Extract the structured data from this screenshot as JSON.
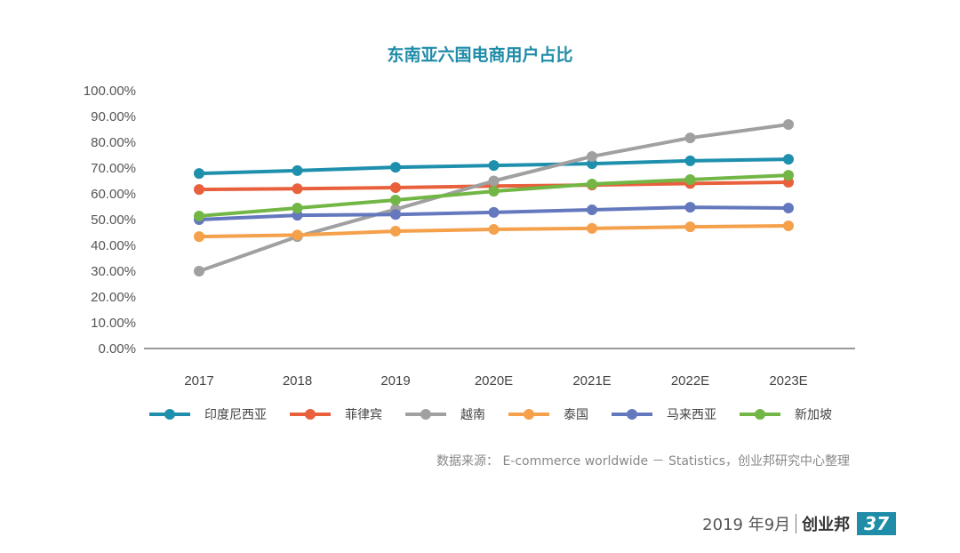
{
  "chart_data": {
    "type": "line",
    "title": "东南亚六国电商用户占比",
    "xlabel": "",
    "ylabel": "",
    "categories": [
      "2017",
      "2018",
      "2019",
      "2020E",
      "2021E",
      "2022E",
      "2023E"
    ],
    "ylim": [
      0,
      100
    ],
    "yticks": [
      "0.00%",
      "10.00%",
      "20.00%",
      "30.00%",
      "40.00%",
      "50.00%",
      "60.00%",
      "70.00%",
      "80.00%",
      "90.00%",
      "100.00%"
    ],
    "grid": false,
    "legend_position": "bottom",
    "series": [
      {
        "name": "印度尼西亚",
        "color": "#1e90ad",
        "values": [
          67.9,
          69.0,
          70.3,
          71.0,
          71.7,
          72.8,
          73.4
        ]
      },
      {
        "name": "菲律宾",
        "color": "#e8603c",
        "values": [
          61.7,
          62.0,
          62.4,
          63.0,
          63.4,
          64.0,
          64.5
        ]
      },
      {
        "name": "越南",
        "color": "#a0a0a0",
        "values": [
          30.0,
          43.4,
          54.0,
          65.0,
          74.5,
          81.7,
          86.9
        ]
      },
      {
        "name": "泰国",
        "color": "#f5a04a",
        "values": [
          43.4,
          44.0,
          45.5,
          46.2,
          46.6,
          47.2,
          47.6
        ]
      },
      {
        "name": "马来西亚",
        "color": "#6478bd",
        "values": [
          50.0,
          51.7,
          52.0,
          52.8,
          53.8,
          54.8,
          54.5
        ]
      },
      {
        "name": "新加坡",
        "color": "#72b645",
        "values": [
          51.4,
          54.5,
          57.6,
          61.0,
          63.8,
          65.5,
          67.2
        ]
      }
    ]
  },
  "source": "数据来源： E-commerce worldwide － Statistics，创业邦研究中心整理",
  "footer": {
    "date": "2019 年9月",
    "brand": "创业邦",
    "page": "37"
  }
}
